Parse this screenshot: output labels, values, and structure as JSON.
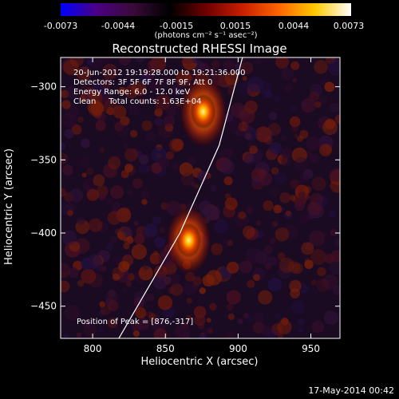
{
  "colors": {
    "colorbar_stops": [
      "#0000ff",
      "#4b0082",
      "#3a0a3a",
      "#000000",
      "#6e0000",
      "#c81e00",
      "#ff6400",
      "#ffc800",
      "#ffffff"
    ],
    "heat_low": "#1a0a22",
    "heat_high": "#fff4a0",
    "limb": "#ffffff",
    "background": "#000000"
  },
  "colorbar": {
    "ticks": [
      "-0.0073",
      "-0.0044",
      "-0.0015",
      "0.0015",
      "0.0044",
      "0.0073"
    ],
    "unit_label": "(photons cm⁻² s⁻¹ asec⁻²)"
  },
  "annotations": {
    "time_range": "20-Jun-2012 19:19:28.000 to 19:21:36.000",
    "detectors": "Detectors: 3F 5F 6F 7F 8F 9F, Att 0",
    "energy": "Energy Range: 6.0 - 12.0 keV",
    "clean": "Clean     Total counts: 1.63E+04",
    "peak": "Position of Peak = [876,-317]"
  },
  "footer": "17-May-2014 00:42",
  "chart_data": {
    "type": "heatmap",
    "title": "Reconstructed RHESSI Image",
    "xlabel": "Heliocentric X (arcsec)",
    "ylabel": "Heliocentric Y (arcsec)",
    "xlim": [
      778,
      970
    ],
    "ylim": [
      -472,
      -280
    ],
    "xticks": [
      800,
      850,
      900,
      950
    ],
    "yticks": [
      -300,
      -350,
      -400,
      -450
    ],
    "colorbar_range": [
      -0.0073,
      0.0073
    ],
    "sources": [
      {
        "x": 876,
        "y": -317,
        "relative_intensity": 1.0
      },
      {
        "x": 866,
        "y": -405,
        "relative_intensity": 0.95
      }
    ],
    "limb_curve": [
      [
        818,
        -472
      ],
      [
        860,
        -400
      ],
      [
        887,
        -340
      ],
      [
        903,
        -280
      ]
    ]
  }
}
